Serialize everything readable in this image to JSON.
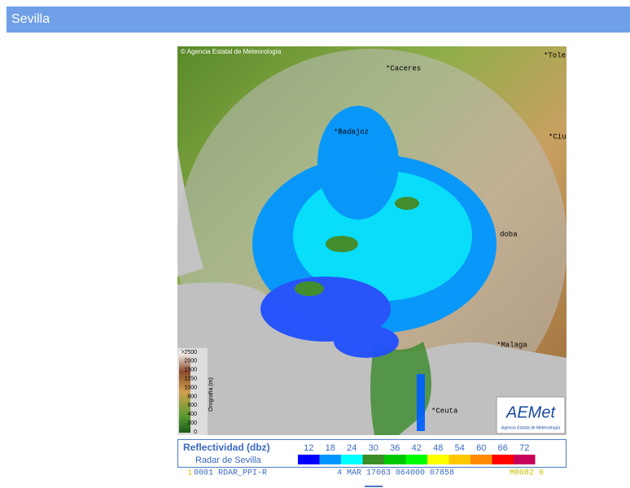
{
  "header": {
    "title": "Sevilla"
  },
  "radar_image": {
    "copyright": "© Agencia Estatal de Meteorología",
    "places": [
      "*Caceres",
      "*Tole",
      "*Badajoz",
      "*Ciu",
      "doba",
      "*Malaga",
      "*Ceuta"
    ],
    "orography": {
      "title": "Orografía (m)",
      "levels": [
        ">2500",
        "2000",
        "1500",
        "1250",
        "1000",
        "800",
        "600",
        "400",
        "200",
        "0"
      ]
    },
    "logo": {
      "name": "AEMet",
      "subtitle": "Agencia Estatal de Meteorología"
    }
  },
  "legend": {
    "title": "Reflectividad (dbz)",
    "subtitle": "Radar de Sevilla",
    "levels": [
      {
        "label": "12",
        "color": "#0000ff"
      },
      {
        "label": "18",
        "color": "#0096ff"
      },
      {
        "label": "24",
        "color": "#00ffff"
      },
      {
        "label": "30",
        "color": "#3c8c28"
      },
      {
        "label": "36",
        "color": "#00c800"
      },
      {
        "label": "42",
        "color": "#00ff00"
      },
      {
        "label": "48",
        "color": "#ffff00"
      },
      {
        "label": "54",
        "color": "#ffc800"
      },
      {
        "label": "60",
        "color": "#ff8c00"
      },
      {
        "label": "66",
        "color": "#ff0000"
      },
      {
        "label": "72",
        "color": "#c8005a"
      }
    ]
  },
  "status_strip": [
    "1",
    "0001 RDAR_PPI-R",
    "4 MAR 17063 064000 07858",
    "M0082 0"
  ]
}
